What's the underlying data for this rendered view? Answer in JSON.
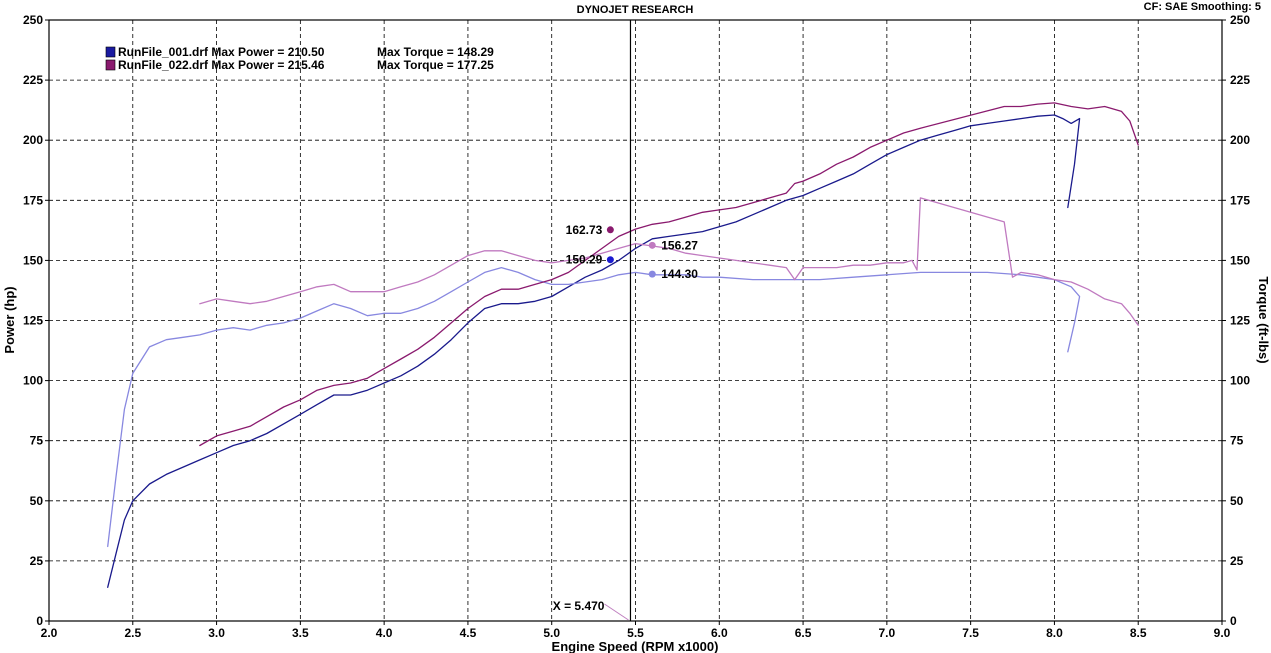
{
  "header": {
    "title": "DYNOJET RESEARCH",
    "settings": "CF: SAE  Smoothing: 5"
  },
  "colors": {
    "run1_power": "#1a1a8c",
    "run1_torque": "#8888e0",
    "run2_power": "#8a1a6e",
    "run2_torque": "#c07ac0",
    "grid": "#000000",
    "cursor": "#000000"
  },
  "legend": {
    "placement": "top-left",
    "entries": [
      {
        "text": "RunFile_001.drf Max Power = 210.50",
        "torque_text": "Max Torque = 148.29",
        "color": "#1a1aa0"
      },
      {
        "text": "RunFile_022.drf Max Power = 215.46",
        "torque_text": "Max Torque = 177.25",
        "color": "#8a1a6e"
      }
    ]
  },
  "cursor": {
    "x": 5.47,
    "label": "X = 5.470",
    "annotations": [
      {
        "text": "162.73",
        "x": 5.35,
        "value": 162.73,
        "axis": "left",
        "color": "#8a1a6e",
        "side": "left"
      },
      {
        "text": "150.29",
        "x": 5.35,
        "value": 150.29,
        "axis": "left",
        "color": "#1a1ad0",
        "side": "left"
      },
      {
        "text": "156.27",
        "x": 5.6,
        "value": 156.27,
        "axis": "right",
        "color": "#c07ac0",
        "side": "right"
      },
      {
        "text": "144.30",
        "x": 5.6,
        "value": 144.3,
        "axis": "right",
        "color": "#8888e0",
        "side": "right"
      }
    ]
  },
  "chart_data": {
    "type": "line",
    "xlabel": "Engine Speed (RPM x1000)",
    "ylabel_left": "Power (hp)",
    "ylabel_right": "Torque (ft-lbs)",
    "xlim": [
      2.0,
      9.0
    ],
    "ylim": [
      0,
      250
    ],
    "x_ticks": [
      "2.0",
      "2.5",
      "3.0",
      "3.5",
      "4.0",
      "4.5",
      "5.0",
      "5.5",
      "6.0",
      "6.5",
      "7.0",
      "7.5",
      "8.0",
      "8.5",
      "9.0"
    ],
    "y_ticks": [
      "0",
      "25",
      "50",
      "75",
      "100",
      "125",
      "150",
      "175",
      "200",
      "225",
      "250"
    ],
    "grid": true,
    "series": [
      {
        "name": "RunFile_001.drf",
        "quantity": "power",
        "color": "#1a1a8c",
        "points": [
          [
            2.35,
            14
          ],
          [
            2.4,
            28
          ],
          [
            2.45,
            42
          ],
          [
            2.5,
            50
          ],
          [
            2.6,
            57
          ],
          [
            2.7,
            61
          ],
          [
            2.8,
            64
          ],
          [
            2.9,
            67
          ],
          [
            3.0,
            70
          ],
          [
            3.1,
            73
          ],
          [
            3.2,
            75
          ],
          [
            3.3,
            78
          ],
          [
            3.4,
            82
          ],
          [
            3.5,
            86
          ],
          [
            3.6,
            90
          ],
          [
            3.7,
            94
          ],
          [
            3.8,
            94
          ],
          [
            3.9,
            96
          ],
          [
            4.0,
            99
          ],
          [
            4.1,
            102
          ],
          [
            4.2,
            106
          ],
          [
            4.3,
            111
          ],
          [
            4.4,
            117
          ],
          [
            4.5,
            124
          ],
          [
            4.6,
            130
          ],
          [
            4.7,
            132
          ],
          [
            4.8,
            132
          ],
          [
            4.9,
            133
          ],
          [
            5.0,
            135
          ],
          [
            5.1,
            139
          ],
          [
            5.2,
            143
          ],
          [
            5.3,
            146
          ],
          [
            5.4,
            150
          ],
          [
            5.5,
            155
          ],
          [
            5.6,
            159
          ],
          [
            5.7,
            160
          ],
          [
            5.8,
            161
          ],
          [
            5.9,
            162
          ],
          [
            6.0,
            164
          ],
          [
            6.1,
            166
          ],
          [
            6.2,
            169
          ],
          [
            6.3,
            172
          ],
          [
            6.4,
            175
          ],
          [
            6.5,
            177
          ],
          [
            6.6,
            180
          ],
          [
            6.7,
            183
          ],
          [
            6.8,
            186
          ],
          [
            6.9,
            190
          ],
          [
            7.0,
            194
          ],
          [
            7.1,
            197
          ],
          [
            7.2,
            200
          ],
          [
            7.3,
            202
          ],
          [
            7.4,
            204
          ],
          [
            7.5,
            206
          ],
          [
            7.6,
            207
          ],
          [
            7.7,
            208
          ],
          [
            7.8,
            209
          ],
          [
            7.9,
            210
          ],
          [
            8.0,
            210.5
          ],
          [
            8.05,
            209
          ],
          [
            8.1,
            207
          ],
          [
            8.15,
            209
          ],
          [
            8.12,
            190
          ],
          [
            8.08,
            172
          ]
        ]
      },
      {
        "name": "RunFile_001.drf",
        "quantity": "torque",
        "color": "#8888e0",
        "points": [
          [
            2.35,
            31
          ],
          [
            2.4,
            60
          ],
          [
            2.45,
            88
          ],
          [
            2.5,
            103
          ],
          [
            2.6,
            114
          ],
          [
            2.7,
            117
          ],
          [
            2.8,
            118
          ],
          [
            2.9,
            119
          ],
          [
            3.0,
            121
          ],
          [
            3.1,
            122
          ],
          [
            3.2,
            121
          ],
          [
            3.3,
            123
          ],
          [
            3.4,
            124
          ],
          [
            3.5,
            126
          ],
          [
            3.6,
            129
          ],
          [
            3.7,
            132
          ],
          [
            3.8,
            130
          ],
          [
            3.9,
            127
          ],
          [
            4.0,
            128
          ],
          [
            4.1,
            128
          ],
          [
            4.2,
            130
          ],
          [
            4.3,
            133
          ],
          [
            4.4,
            137
          ],
          [
            4.5,
            141
          ],
          [
            4.6,
            145
          ],
          [
            4.7,
            147
          ],
          [
            4.8,
            145
          ],
          [
            4.9,
            142
          ],
          [
            5.0,
            140
          ],
          [
            5.1,
            140
          ],
          [
            5.2,
            141
          ],
          [
            5.3,
            142
          ],
          [
            5.4,
            144
          ],
          [
            5.5,
            145
          ],
          [
            5.6,
            144
          ],
          [
            5.7,
            144
          ],
          [
            5.8,
            144
          ],
          [
            5.9,
            143
          ],
          [
            6.0,
            143
          ],
          [
            6.2,
            142
          ],
          [
            6.4,
            142
          ],
          [
            6.6,
            142
          ],
          [
            6.8,
            143
          ],
          [
            7.0,
            144
          ],
          [
            7.2,
            145
          ],
          [
            7.4,
            145
          ],
          [
            7.6,
            145
          ],
          [
            7.8,
            144
          ],
          [
            8.0,
            142
          ],
          [
            8.1,
            139
          ],
          [
            8.15,
            135
          ],
          [
            8.12,
            124
          ],
          [
            8.08,
            112
          ]
        ]
      },
      {
        "name": "RunFile_022.drf",
        "quantity": "power",
        "color": "#8a1a6e",
        "points": [
          [
            2.9,
            73
          ],
          [
            3.0,
            77
          ],
          [
            3.1,
            79
          ],
          [
            3.2,
            81
          ],
          [
            3.3,
            85
          ],
          [
            3.4,
            89
          ],
          [
            3.5,
            92
          ],
          [
            3.6,
            96
          ],
          [
            3.7,
            98
          ],
          [
            3.8,
            99
          ],
          [
            3.9,
            101
          ],
          [
            4.0,
            105
          ],
          [
            4.1,
            109
          ],
          [
            4.2,
            113
          ],
          [
            4.3,
            118
          ],
          [
            4.4,
            124
          ],
          [
            4.5,
            130
          ],
          [
            4.6,
            135
          ],
          [
            4.7,
            138
          ],
          [
            4.8,
            138
          ],
          [
            4.9,
            140
          ],
          [
            5.0,
            142
          ],
          [
            5.1,
            145
          ],
          [
            5.2,
            150
          ],
          [
            5.3,
            155
          ],
          [
            5.4,
            160
          ],
          [
            5.5,
            163
          ],
          [
            5.6,
            165
          ],
          [
            5.7,
            166
          ],
          [
            5.8,
            168
          ],
          [
            5.9,
            170
          ],
          [
            6.0,
            171
          ],
          [
            6.1,
            172
          ],
          [
            6.2,
            174
          ],
          [
            6.3,
            176
          ],
          [
            6.4,
            178
          ],
          [
            6.45,
            182
          ],
          [
            6.5,
            183
          ],
          [
            6.6,
            186
          ],
          [
            6.7,
            190
          ],
          [
            6.8,
            193
          ],
          [
            6.9,
            197
          ],
          [
            7.0,
            200
          ],
          [
            7.1,
            203
          ],
          [
            7.2,
            205
          ],
          [
            7.7,
            214
          ],
          [
            7.8,
            214
          ],
          [
            7.9,
            215
          ],
          [
            8.0,
            215.5
          ],
          [
            8.1,
            214
          ],
          [
            8.2,
            213
          ],
          [
            8.3,
            214
          ],
          [
            8.4,
            212
          ],
          [
            8.45,
            208
          ],
          [
            8.5,
            198
          ]
        ]
      },
      {
        "name": "RunFile_022.drf",
        "quantity": "torque",
        "color": "#c07ac0",
        "points": [
          [
            2.9,
            132
          ],
          [
            3.0,
            134
          ],
          [
            3.1,
            133
          ],
          [
            3.2,
            132
          ],
          [
            3.3,
            133
          ],
          [
            3.4,
            135
          ],
          [
            3.5,
            137
          ],
          [
            3.6,
            139
          ],
          [
            3.7,
            140
          ],
          [
            3.8,
            137
          ],
          [
            3.9,
            137
          ],
          [
            4.0,
            137
          ],
          [
            4.1,
            139
          ],
          [
            4.2,
            141
          ],
          [
            4.3,
            144
          ],
          [
            4.4,
            148
          ],
          [
            4.5,
            152
          ],
          [
            4.6,
            154
          ],
          [
            4.7,
            154
          ],
          [
            4.8,
            152
          ],
          [
            4.9,
            150
          ],
          [
            5.0,
            149
          ],
          [
            5.1,
            150
          ],
          [
            5.2,
            151
          ],
          [
            5.3,
            153
          ],
          [
            5.4,
            155
          ],
          [
            5.5,
            157
          ],
          [
            5.6,
            156
          ],
          [
            5.7,
            155
          ],
          [
            5.8,
            153
          ],
          [
            5.9,
            152
          ],
          [
            6.0,
            151
          ],
          [
            6.1,
            150
          ],
          [
            6.2,
            149
          ],
          [
            6.3,
            148
          ],
          [
            6.4,
            147
          ],
          [
            6.45,
            142
          ],
          [
            6.5,
            147
          ],
          [
            6.6,
            147
          ],
          [
            6.7,
            147
          ],
          [
            6.8,
            148
          ],
          [
            6.9,
            148
          ],
          [
            7.0,
            149
          ],
          [
            7.1,
            149
          ],
          [
            7.15,
            150
          ],
          [
            7.18,
            146
          ],
          [
            7.2,
            176
          ],
          [
            7.7,
            166
          ],
          [
            7.75,
            143
          ],
          [
            7.8,
            145
          ],
          [
            7.9,
            144
          ],
          [
            8.0,
            142
          ],
          [
            8.1,
            141
          ],
          [
            8.2,
            138
          ],
          [
            8.3,
            134
          ],
          [
            8.4,
            132
          ],
          [
            8.45,
            128
          ],
          [
            8.5,
            123
          ]
        ]
      }
    ]
  }
}
